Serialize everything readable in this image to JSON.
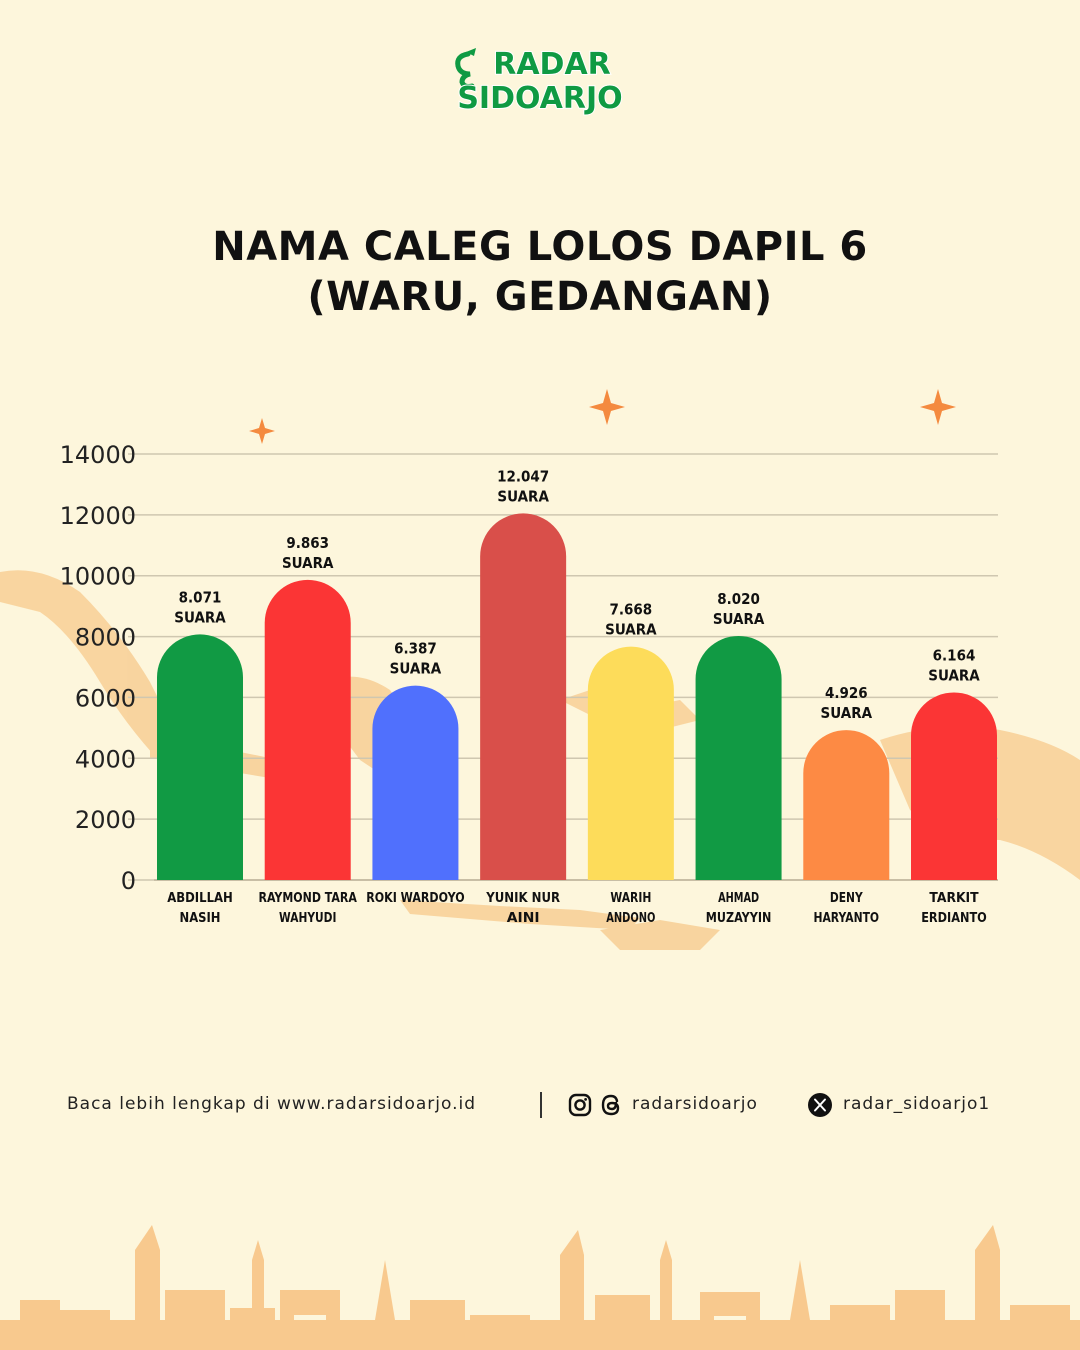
{
  "brand": {
    "line1": "RADAR",
    "line2": "SIDOARJO",
    "color": "#0f9a43"
  },
  "title": {
    "line1": "NAMA CALEG LOLOS DAPIL 6",
    "line2": "(WARU, GEDANGAN)"
  },
  "chart_data": {
    "type": "bar",
    "ylim": [
      0,
      14000
    ],
    "yticks": [
      "0",
      "2000",
      "4000",
      "6000",
      "8000",
      "10000",
      "12000",
      "14000"
    ],
    "grid": true,
    "unit_label": "SUARA",
    "categories": [
      [
        "ABDILLAH",
        "NASIH"
      ],
      [
        "RAYMOND TARA",
        "WAHYUDI"
      ],
      [
        "ROKI WARDOYO"
      ],
      [
        "YUNIK NUR",
        "AINI"
      ],
      [
        "WARIH",
        "ANDONO"
      ],
      [
        "AHMAD",
        "MUZAYYIN"
      ],
      [
        "DENY",
        "HARYANTO"
      ],
      [
        "TARKIT",
        "ERDIANTO"
      ]
    ],
    "values": [
      8071,
      9863,
      6387,
      12047,
      7668,
      8020,
      4926,
      6164
    ],
    "value_labels": [
      "8.071",
      "9.863",
      "6.387",
      "12.047",
      "7.668",
      "8.020",
      "4.926",
      "6.164"
    ],
    "colors": [
      "#119a44",
      "#fb3535",
      "#5070fd",
      "#d94f4a",
      "#fddc5a",
      "#119a44",
      "#fd8a44",
      "#fb3535"
    ]
  },
  "footer": {
    "read_more": "Baca lebih lengkap di www.radarsidoarjo.id",
    "social_handle": "radarsidoarjo",
    "x_handle": "radar_sidoarjo1",
    "icons": [
      "instagram-icon",
      "threads-icon",
      "x-icon"
    ]
  },
  "decor": {
    "star_color": "#f48a3f",
    "map_color": "#f8cf95",
    "skyline_color": "#f8c98e"
  }
}
